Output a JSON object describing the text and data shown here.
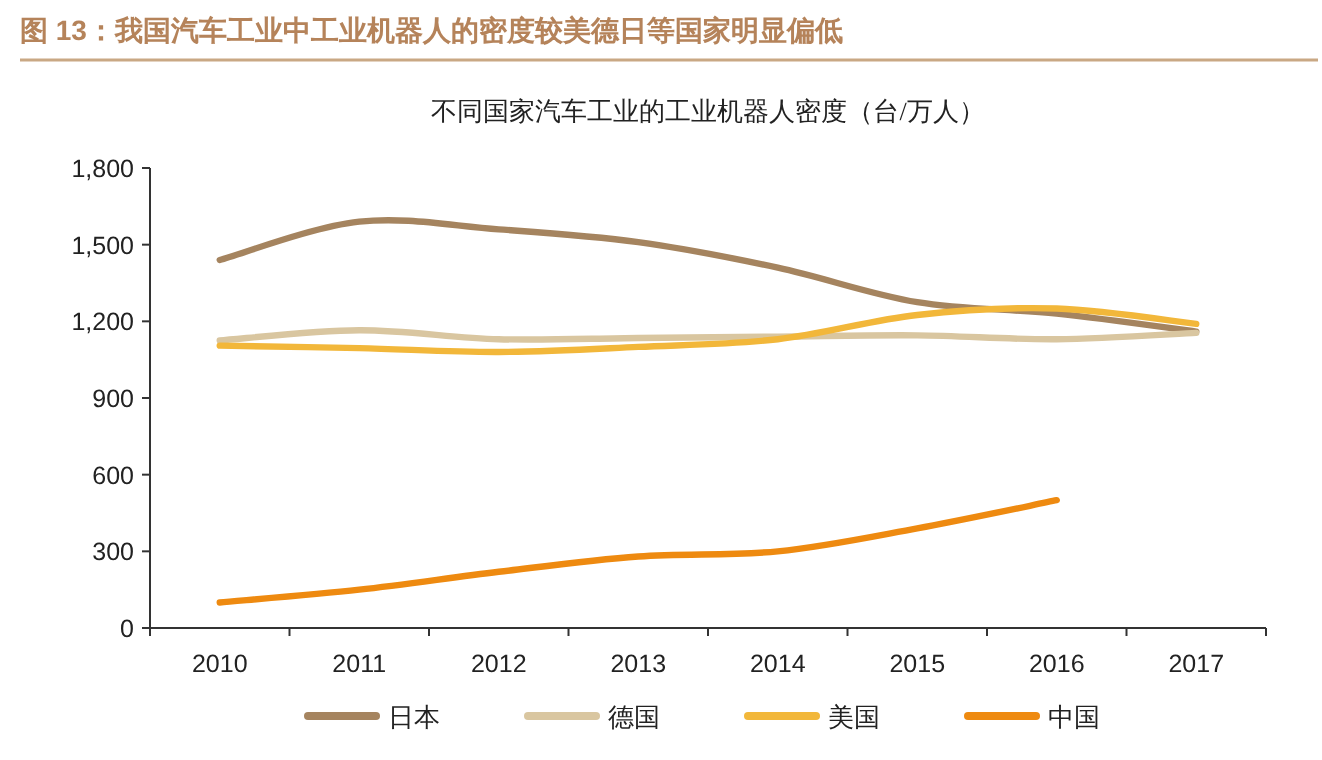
{
  "chart_data": {
    "type": "line",
    "title": "图 13：我国汽车工业中工业机器人的密度较美德日等国家明显偏低",
    "subtitle": "不同国家汽车工业的工业机器人密度（台/万人）",
    "categories": [
      "2010",
      "2011",
      "2012",
      "2013",
      "2014",
      "2015",
      "2016",
      "2017"
    ],
    "series": [
      {
        "name": "日本",
        "color": "#a5845f",
        "values": [
          1440,
          1590,
          1560,
          1510,
          1410,
          1275,
          1230,
          1160
        ]
      },
      {
        "name": "德国",
        "color": "#d9c6a0",
        "values": [
          1125,
          1165,
          1130,
          1135,
          1140,
          1145,
          1130,
          1155
        ]
      },
      {
        "name": "美国",
        "color": "#f2b73a",
        "values": [
          1105,
          1095,
          1080,
          1100,
          1130,
          1225,
          1250,
          1190
        ]
      },
      {
        "name": "中国",
        "color": "#ee8a10",
        "values": [
          100,
          150,
          220,
          280,
          300,
          390,
          500,
          null
        ]
      }
    ],
    "ylim": [
      0,
      1800
    ],
    "yticks": [
      {
        "value": 0,
        "label": "0"
      },
      {
        "value": 300,
        "label": "300"
      },
      {
        "value": 600,
        "label": "600"
      },
      {
        "value": 900,
        "label": "900"
      },
      {
        "value": 1200,
        "label": "1,200"
      },
      {
        "value": 1500,
        "label": "1,500"
      },
      {
        "value": 1800,
        "label": "1,800"
      }
    ],
    "grid": false,
    "legend": "bottom",
    "marker": "none",
    "line_style": "solid"
  }
}
